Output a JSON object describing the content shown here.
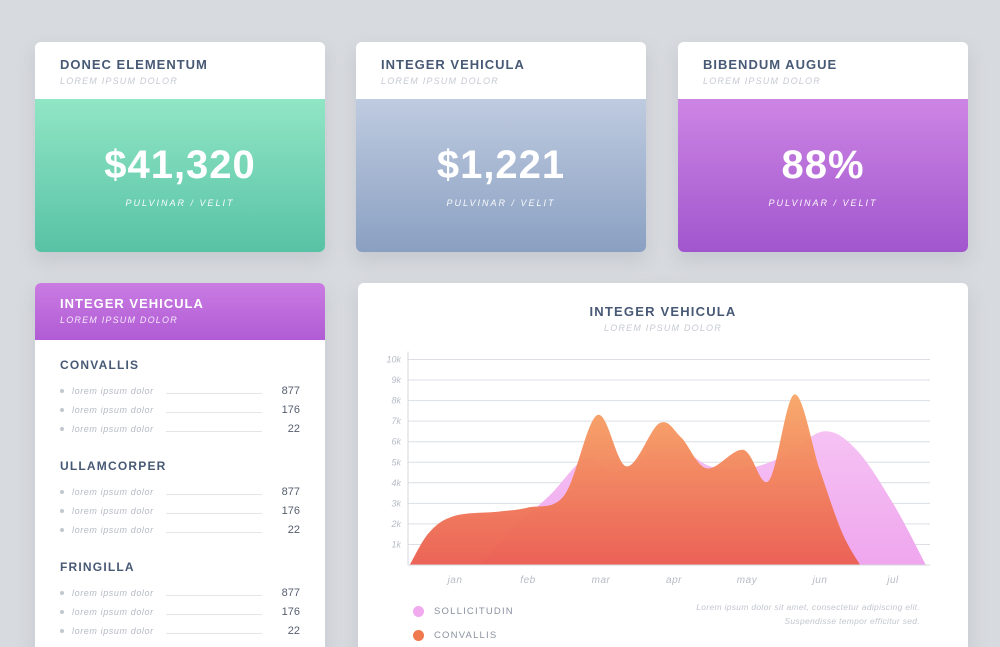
{
  "page": {
    "background": "#d7dade",
    "accent_text": "#475975"
  },
  "stat_cards": [
    {
      "title": "DONEC ELEMENTUM",
      "subtitle": "LOREM IPSUM DOLOR",
      "value": "$41,320",
      "caption": "PULVINAR / VELIT",
      "gradient_from": "#90e6c5",
      "gradient_to": "#58c2a5"
    },
    {
      "title": "INTEGER VEHICULA",
      "subtitle": "LOREM IPSUM DOLOR",
      "value": "$1,221",
      "caption": "PULVINAR / VELIT",
      "gradient_from": "#bfcbe0",
      "gradient_to": "#8aa0c2"
    },
    {
      "title": "BIBENDUM AUGUE",
      "subtitle": "LOREM IPSUM DOLOR",
      "value": "88%",
      "caption": "PULVINAR / VELIT",
      "gradient_from": "#cd85e4",
      "gradient_to": "#a156cd"
    }
  ],
  "list_card": {
    "title": "INTEGER VEHICULA",
    "subtitle": "LOREM IPSUM DOLOR",
    "gradient_from": "#ca7ce2",
    "gradient_to": "#b05bd5",
    "sections": [
      {
        "heading": "CONVALLIS",
        "rows": [
          {
            "label": "lorem ipsum dolor",
            "value": "877"
          },
          {
            "label": "lorem ipsum dolor",
            "value": "176"
          },
          {
            "label": "lorem ipsum dolor",
            "value": "22"
          }
        ]
      },
      {
        "heading": "ULLAMCORPER",
        "rows": [
          {
            "label": "lorem ipsum dolor",
            "value": "877"
          },
          {
            "label": "lorem ipsum dolor",
            "value": "176"
          },
          {
            "label": "lorem ipsum dolor",
            "value": "22"
          }
        ]
      },
      {
        "heading": "FRINGILLA",
        "rows": [
          {
            "label": "lorem ipsum dolor",
            "value": "877"
          },
          {
            "label": "lorem ipsum dolor",
            "value": "176"
          },
          {
            "label": "lorem ipsum dolor",
            "value": "22"
          }
        ]
      }
    ]
  },
  "chart_card": {
    "title": "INTEGER VEHICULA",
    "subtitle": "LOREM IPSUM DOLOR",
    "legend": [
      {
        "label": "SOLLICITUDIN",
        "color": "#f2aaef"
      },
      {
        "label": "CONVALLIS",
        "color": "#f0784f"
      }
    ],
    "note_line1": "Lorem ipsum dolor sit amet, consectetur adipiscing elit.",
    "note_line2": "Suspendisse tempor efficitur sed."
  },
  "chart_data": {
    "type": "area",
    "title": "INTEGER VEHICULA",
    "x_labels": [
      "jan",
      "feb",
      "mar",
      "apr",
      "may",
      "jun",
      "jul"
    ],
    "y_ticks": [
      "1k",
      "2k",
      "3k",
      "4k",
      "5k",
      "6k",
      "7k",
      "8k",
      "9k",
      "10k"
    ],
    "ylim": [
      0,
      10000
    ],
    "grid": true,
    "legend_position": "bottom-left",
    "units_note": "x in month units (0 = jan), values in thousands",
    "series": [
      {
        "name": "SOLLICITUDIN",
        "color_top": "#f5c0f3",
        "color_bottom": "#efa3ed",
        "points": [
          [
            0.35,
            0
          ],
          [
            0.8,
            1.8
          ],
          [
            1.3,
            3.4
          ],
          [
            1.8,
            5.2
          ],
          [
            2.2,
            4.5
          ],
          [
            2.7,
            5.5
          ],
          [
            3.1,
            5.6
          ],
          [
            3.5,
            4.8
          ],
          [
            4.0,
            4.7
          ],
          [
            4.5,
            5.3
          ],
          [
            5.05,
            6.5
          ],
          [
            5.5,
            5.6
          ],
          [
            6.0,
            3.0
          ],
          [
            6.45,
            0
          ]
        ]
      },
      {
        "name": "CONVALLIS",
        "color_top": "#f8a768",
        "color_bottom": "#eb5f52",
        "points": [
          [
            -0.62,
            0
          ],
          [
            -0.35,
            1.6
          ],
          [
            0,
            2.4
          ],
          [
            0.6,
            2.6
          ],
          [
            1.0,
            2.8
          ],
          [
            1.5,
            3.4
          ],
          [
            1.95,
            7.3
          ],
          [
            2.35,
            4.8
          ],
          [
            2.8,
            6.9
          ],
          [
            3.1,
            6.2
          ],
          [
            3.45,
            4.7
          ],
          [
            3.95,
            5.6
          ],
          [
            4.3,
            4.1
          ],
          [
            4.65,
            8.3
          ],
          [
            5.0,
            4.6
          ],
          [
            5.3,
            1.6
          ],
          [
            5.55,
            0
          ]
        ]
      }
    ]
  }
}
